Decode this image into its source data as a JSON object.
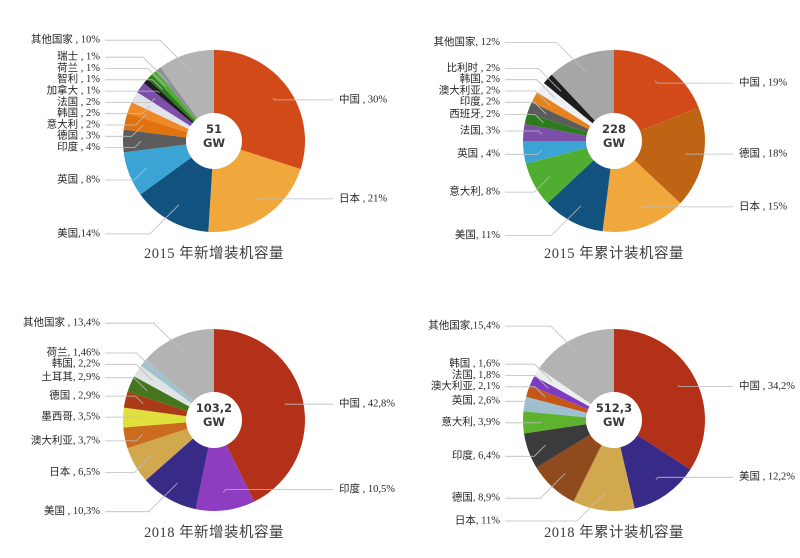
{
  "chart_data": [
    {
      "type": "pie",
      "donut": true,
      "title": "2015 年新增装机容量",
      "center_label": {
        "value": "51",
        "unit": "GW"
      },
      "legend_position": "none",
      "slices": [
        {
          "name": "中国",
          "label": "中国 , 30%",
          "value": 30,
          "color": "#d24a18"
        },
        {
          "name": "日本",
          "label": "日本 , 21%",
          "value": 21,
          "color": "#f0a73c"
        },
        {
          "name": "美国",
          "label": "美国,14%",
          "value": 14,
          "color": "#12527f"
        },
        {
          "name": "英国",
          "label": "英国 , 8%",
          "value": 8,
          "color": "#3ba4d4"
        },
        {
          "name": "印度",
          "label": "印度 , 4%",
          "value": 4,
          "color": "#5c5c5c"
        },
        {
          "name": "德国",
          "label": "德国 , 3%",
          "value": 3,
          "color": "#e0720f"
        },
        {
          "name": "意大利",
          "label": "意大利 , 2%",
          "value": 2,
          "color": "#ef8826"
        },
        {
          "name": "韩国",
          "label": "韩国 , 2%",
          "value": 2,
          "color": "#e0e2ec"
        },
        {
          "name": "法国",
          "label": "法国 , 2%",
          "value": 2,
          "color": "#7d4fa8"
        },
        {
          "name": "加拿大",
          "label": "加拿大 , 1%",
          "value": 1,
          "color": "#1d1d1d"
        },
        {
          "name": "智利",
          "label": "智利 , 1%",
          "value": 1,
          "color": "#2e7a1f"
        },
        {
          "name": "荷兰",
          "label": "荷兰 , 1%",
          "value": 1,
          "color": "#4fae32"
        },
        {
          "name": "瑞士",
          "label": "瑞士 , 1%",
          "value": 1,
          "color": "#8e9094"
        },
        {
          "name": "其他国家",
          "label": "其他国家 , 10%",
          "value": 10,
          "color": "#b3b3b3"
        }
      ]
    },
    {
      "type": "pie",
      "donut": true,
      "title": "2015 年累计装机容量",
      "center_label": {
        "value": "228",
        "unit": "GW"
      },
      "legend_position": "none",
      "slices": [
        {
          "name": "中国",
          "label": "中国 , 19%",
          "value": 19,
          "color": "#d24a18"
        },
        {
          "name": "德国",
          "label": "德国 , 18%",
          "value": 18,
          "color": "#bf6314"
        },
        {
          "name": "日本",
          "label": "日本 , 15%",
          "value": 15,
          "color": "#f0a73c"
        },
        {
          "name": "美国",
          "label": "美国, 11%",
          "value": 11,
          "color": "#12527f"
        },
        {
          "name": "意大利",
          "label": "意大利, 8%",
          "value": 8,
          "color": "#4fae32"
        },
        {
          "name": "英国",
          "label": "英国 , 4%",
          "value": 4,
          "color": "#3ba4d4"
        },
        {
          "name": "法国",
          "label": "法国, 3%",
          "value": 3,
          "color": "#7d4fa8"
        },
        {
          "name": "西班牙",
          "label": "西班牙, 2%",
          "value": 2,
          "color": "#2e7a1f"
        },
        {
          "name": "印度",
          "label": "印度, 2%",
          "value": 2,
          "color": "#5c5c5c"
        },
        {
          "name": "澳大利亚",
          "label": "澳大利亚, 2%",
          "value": 2,
          "color": "#e8821e"
        },
        {
          "name": "韩国",
          "label": "韩国, 2%",
          "value": 2,
          "color": "#eef0f4"
        },
        {
          "name": "比利时",
          "label": "比利时 , 2%",
          "value": 2,
          "color": "#1d1d1d"
        },
        {
          "name": "其他国家",
          "label": "其他国家, 12%",
          "value": 12,
          "color": "#a6a6a6"
        }
      ]
    },
    {
      "type": "pie",
      "donut": true,
      "title": "2018 年新增装机容量",
      "center_label": {
        "value": "103,2",
        "unit": "GW"
      },
      "legend_position": "none",
      "slices": [
        {
          "name": "中国",
          "label": "中国 , 42,8%",
          "value": 42.8,
          "color": "#b43119"
        },
        {
          "name": "印度",
          "label": "印度 , 10,5%",
          "value": 10.5,
          "color": "#8e3cc0"
        },
        {
          "name": "美国",
          "label": "美国 , 10,3%",
          "value": 10.3,
          "color": "#382b87"
        },
        {
          "name": "日本",
          "label": "日本 , 6,5%",
          "value": 6.5,
          "color": "#d2a84f"
        },
        {
          "name": "澳大利亚",
          "label": "澳大利亚, 3,7%",
          "value": 3.7,
          "color": "#ca6b1e"
        },
        {
          "name": "墨西哥",
          "label": "墨西哥, 3,5%",
          "value": 3.5,
          "color": "#dfe03c"
        },
        {
          "name": "德国",
          "label": "德国 , 2,9%",
          "value": 2.9,
          "color": "#ab3a17"
        },
        {
          "name": "土耳其",
          "label": "土耳其, 2,9%",
          "value": 2.9,
          "color": "#45761d"
        },
        {
          "name": "韩国",
          "label": "韩国, 2,2%",
          "value": 2.2,
          "color": "#e0e3e5"
        },
        {
          "name": "荷兰",
          "label": "荷兰, 1,46%",
          "value": 1.46,
          "color": "#a2c2cd"
        },
        {
          "name": "其他国家",
          "label": "其他国家 , 13,4%",
          "value": 13.4,
          "color": "#b3b3b3"
        }
      ]
    },
    {
      "type": "pie",
      "donut": true,
      "title": "2018 年累计装机容量",
      "center_label": {
        "value": "512,3",
        "unit": "GW"
      },
      "legend_position": "none",
      "slices": [
        {
          "name": "中国",
          "label": "中国 , 34,2%",
          "value": 34.2,
          "color": "#b43119"
        },
        {
          "name": "美国",
          "label": "美国 , 12,2%",
          "value": 12.2,
          "color": "#382b87"
        },
        {
          "name": "日本",
          "label": "日本, 11%",
          "value": 11,
          "color": "#d2a84f"
        },
        {
          "name": "德国",
          "label": "德国, 8,9%",
          "value": 8.9,
          "color": "#8f4a1d"
        },
        {
          "name": "印度",
          "label": "印度, 6,4%",
          "value": 6.4,
          "color": "#3b3b3b"
        },
        {
          "name": "意大利",
          "label": "意大利, 3,9%",
          "value": 3.9,
          "color": "#5db22e"
        },
        {
          "name": "英国",
          "label": "英国, 2,6%",
          "value": 2.6,
          "color": "#9ec0ce"
        },
        {
          "name": "澳大利亚",
          "label": "澳大利亚, 2,1%",
          "value": 2.1,
          "color": "#c65617"
        },
        {
          "name": "法国",
          "label": "法国, 1,8%",
          "value": 1.8,
          "color": "#7c3bc2"
        },
        {
          "name": "韩国",
          "label": "韩国 , 1,6%",
          "value": 1.6,
          "color": "#eceef0"
        },
        {
          "name": "其他国家",
          "label": "其他国家,15,4%",
          "value": 15.4,
          "color": "#b3b3b3"
        }
      ]
    }
  ]
}
